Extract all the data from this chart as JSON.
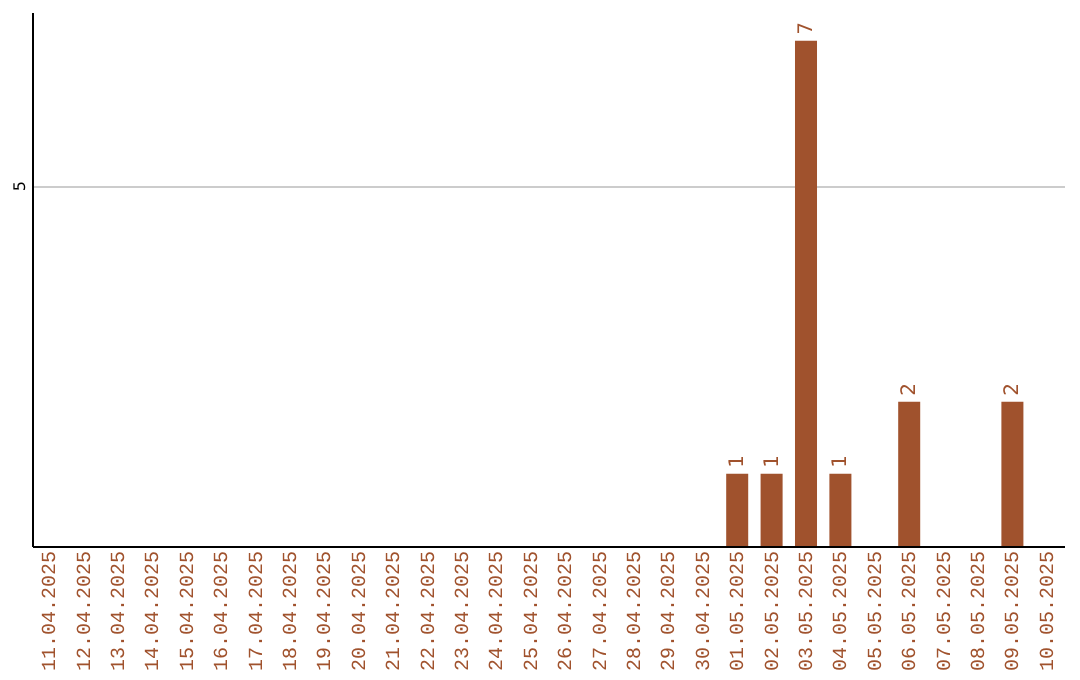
{
  "chart_data": {
    "type": "bar",
    "categories": [
      "11.04.2025",
      "12.04.2025",
      "13.04.2025",
      "14.04.2025",
      "15.04.2025",
      "16.04.2025",
      "17.04.2025",
      "18.04.2025",
      "19.04.2025",
      "20.04.2025",
      "21.04.2025",
      "22.04.2025",
      "23.04.2025",
      "24.04.2025",
      "25.04.2025",
      "26.04.2025",
      "27.04.2025",
      "28.04.2025",
      "29.04.2025",
      "30.04.2025",
      "01.05.2025",
      "02.05.2025",
      "03.05.2025",
      "04.05.2025",
      "05.05.2025",
      "06.05.2025",
      "07.05.2025",
      "08.05.2025",
      "09.05.2025",
      "10.05.2025"
    ],
    "values": [
      null,
      null,
      null,
      null,
      null,
      null,
      null,
      null,
      null,
      null,
      null,
      null,
      null,
      null,
      null,
      null,
      null,
      null,
      null,
      null,
      1,
      1,
      7,
      1,
      null,
      2,
      null,
      null,
      2,
      null
    ],
    "data_labels": true,
    "color": "#a0522d",
    "ylim": [
      0,
      7.4
    ],
    "yticks": [
      5
    ],
    "grid": "y"
  }
}
